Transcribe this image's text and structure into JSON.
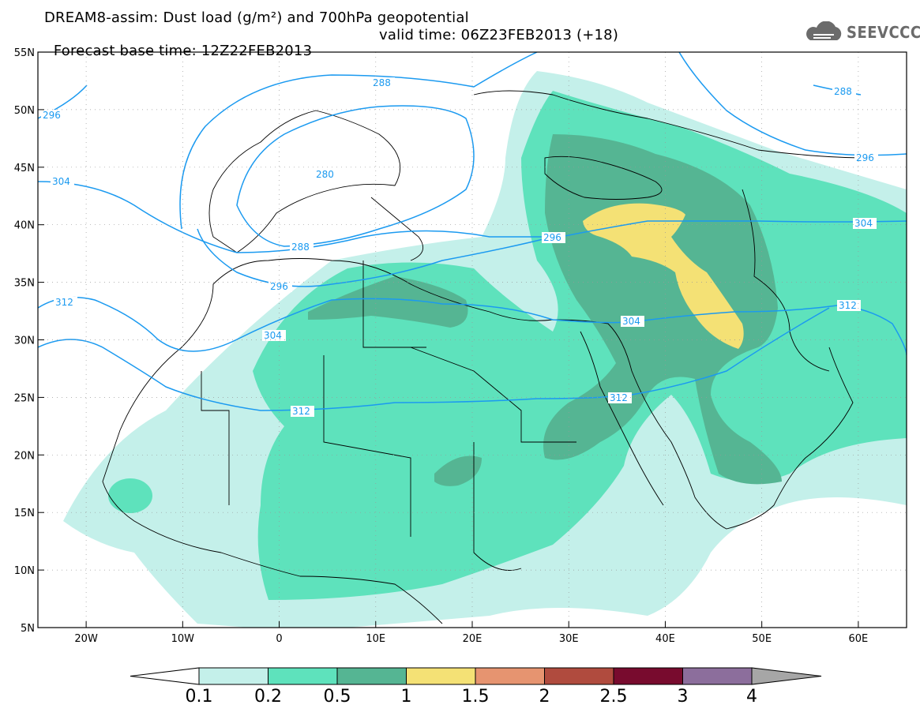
{
  "title": {
    "line1": "DREAM8-assim: Dust load (g/m²) and 700hPa geopotential",
    "base_time": "Forecast base time: 12Z22FEB2013",
    "valid_time": "valid time: 06Z23FEB2013 (+18)"
  },
  "logo": {
    "text": "SEEVCCC",
    "icon": "cloud-icon"
  },
  "axes": {
    "lon_labels": [
      "20W",
      "10W",
      "0",
      "10E",
      "20E",
      "30E",
      "40E",
      "50E",
      "60E"
    ],
    "lat_labels": [
      "55N",
      "50N",
      "45N",
      "40N",
      "35N",
      "30N",
      "25N",
      "20N",
      "15N",
      "10N",
      "5N"
    ],
    "lon_range": [
      -25,
      65
    ],
    "lat_range": [
      5,
      55
    ]
  },
  "contours": {
    "labels": [
      "296",
      "288",
      "280",
      "304",
      "288",
      "296",
      "312",
      "304",
      "296",
      "304",
      "312",
      "312",
      "288",
      "296",
      "304",
      "312"
    ]
  },
  "colorbar": {
    "levels": [
      "0.1",
      "0.2",
      "0.5",
      "1",
      "1.5",
      "2",
      "2.5",
      "3",
      "4"
    ],
    "colors": [
      "#c4f0ea",
      "#5ee2bc",
      "#55b593",
      "#f4e175",
      "#e69470",
      "#b04b3e",
      "#780b2e",
      "#8c6e9c"
    ],
    "under_color": "#ffffff",
    "over_color": "#a6a6a6"
  }
}
